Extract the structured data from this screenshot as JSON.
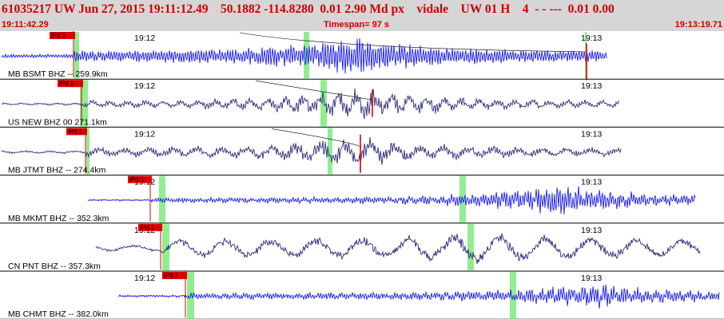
{
  "header": {
    "title_line": "61035217 UW Jun 27, 2015 19:11:12.49    50.1882 -114.8280  0.01 2.90 Md px    vidale    UW 01 H    4  - - ---  0.01 0.00",
    "start_time": "19:11:42.29",
    "timespan": "Timespan=  97 s",
    "end_time": "19:13:19.71"
  },
  "colors": {
    "header_bg": "#d6d6d6",
    "header_text": "#cc0000",
    "trace_blue": "#1a1aee",
    "trace_navy": "#2b2b7a",
    "pick_marker": "#dd0000",
    "window_marker": "#90ee90",
    "separator": "#000000"
  },
  "traces": [
    {
      "label": "MB BSMT BHZ -- 259.9km",
      "pick_label": "iPd 1",
      "minute_labels": [
        "19:12",
        "19:13"
      ],
      "color": "blue"
    },
    {
      "label": "US NEW BHZ 00 271.1km",
      "pick_label": "iPd 1",
      "minute_labels": [
        "19:12",
        "19:13"
      ],
      "color": "navy"
    },
    {
      "label": "MB JTMT BHZ -- 274.4km",
      "pick_label": "iPd 1",
      "minute_labels": [
        "19:12",
        "19:13"
      ],
      "color": "navy"
    },
    {
      "label": "MB MKMT BHZ -- 352.3km",
      "pick_label": "iPd 1",
      "minute_labels": [
        "19:12",
        "19:13"
      ],
      "color": "blue"
    },
    {
      "label": "CN PNT BHZ -- 357.3km",
      "pick_label": "iPd 1",
      "minute_labels": [
        "19:12",
        "19:13"
      ],
      "color": "navy"
    },
    {
      "label": "MB CHMT BHZ -- 382.0km",
      "pick_label": "iPd 1",
      "minute_labels": [
        "19:12",
        "19:13"
      ],
      "color": "blue"
    }
  ]
}
